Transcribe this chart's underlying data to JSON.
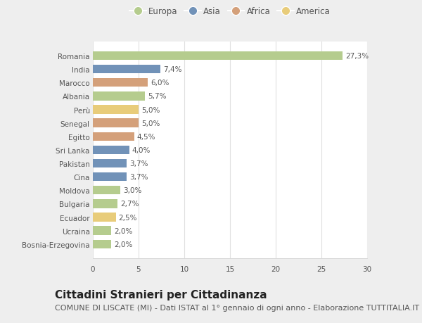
{
  "countries": [
    "Bosnia-Erzegovina",
    "Ucraina",
    "Ecuador",
    "Bulgaria",
    "Moldova",
    "Cina",
    "Pakistan",
    "Sri Lanka",
    "Egitto",
    "Senegal",
    "Perù",
    "Albania",
    "Marocco",
    "India",
    "Romania"
  ],
  "values": [
    2.0,
    2.0,
    2.5,
    2.7,
    3.0,
    3.7,
    3.7,
    4.0,
    4.5,
    5.0,
    5.0,
    5.7,
    6.0,
    7.4,
    27.3
  ],
  "labels": [
    "2,0%",
    "2,0%",
    "2,5%",
    "2,7%",
    "3,0%",
    "3,7%",
    "3,7%",
    "4,0%",
    "4,5%",
    "5,0%",
    "5,0%",
    "5,7%",
    "6,0%",
    "7,4%",
    "27,3%"
  ],
  "continents": [
    "Europa",
    "Europa",
    "America",
    "Europa",
    "Europa",
    "Asia",
    "Asia",
    "Asia",
    "Africa",
    "Africa",
    "America",
    "Europa",
    "Africa",
    "Asia",
    "Europa"
  ],
  "continent_colors": {
    "Europa": "#b5cc8e",
    "Asia": "#7192b8",
    "Africa": "#d4a07a",
    "America": "#e8cc7a"
  },
  "legend_order": [
    "Europa",
    "Asia",
    "Africa",
    "America"
  ],
  "xlim": [
    0,
    30
  ],
  "xticks": [
    0,
    5,
    10,
    15,
    20,
    25,
    30
  ],
  "outer_background": "#eeeeee",
  "plot_background": "#ffffff",
  "grid_color": "#e0e0e0",
  "bar_height": 0.65,
  "title": "Cittadini Stranieri per Cittadinanza",
  "subtitle": "COMUNE DI LISCATE (MI) - Dati ISTAT al 1° gennaio di ogni anno - Elaborazione TUTTITALIA.IT",
  "title_fontsize": 11,
  "subtitle_fontsize": 8,
  "label_fontsize": 7.5,
  "tick_fontsize": 7.5,
  "legend_fontsize": 8.5,
  "text_color": "#555555"
}
